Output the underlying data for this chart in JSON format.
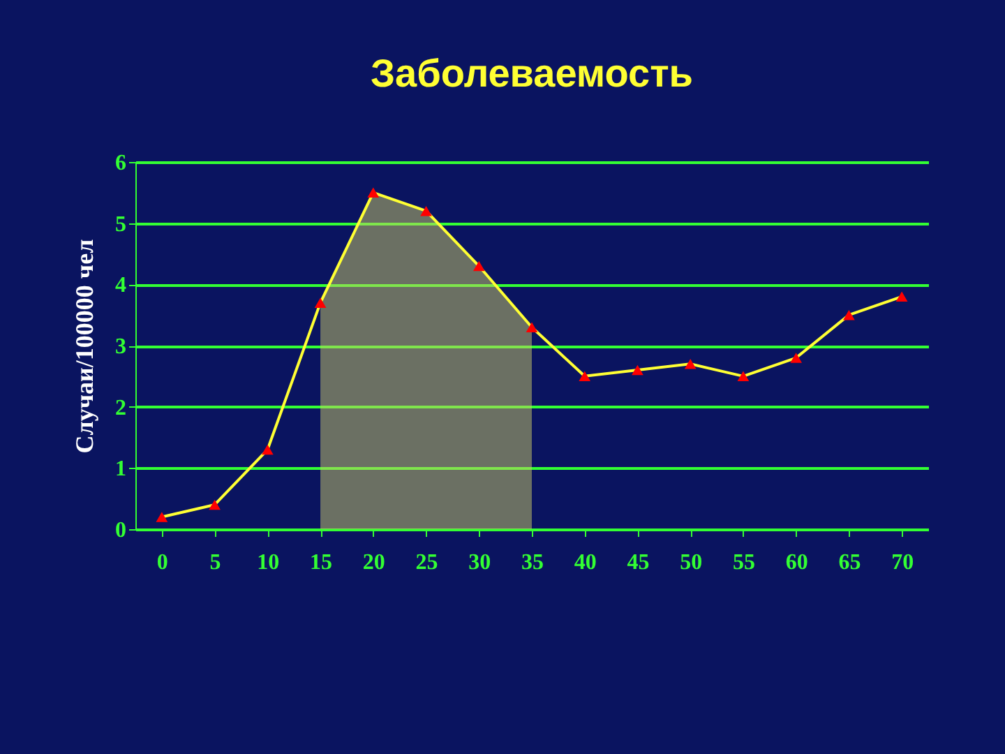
{
  "chart_data": {
    "type": "line",
    "title": "Заболеваемость",
    "ylabel": "Случаи/100000 чел",
    "categories": [
      "0",
      "5",
      "10",
      "15",
      "20",
      "25",
      "30",
      "35",
      "40",
      "45",
      "50",
      "55",
      "60",
      "65",
      "70"
    ],
    "series": [
      {
        "type": "area",
        "color": "#cccc66",
        "values": [
          null,
          null,
          null,
          3.7,
          5.5,
          5.2,
          4.3,
          3.3,
          null,
          null,
          null,
          null,
          null,
          null,
          null
        ]
      },
      {
        "color": "#ffff33",
        "values": [
          0.2,
          0.4,
          1.3,
          3.7,
          5.5,
          5.2,
          4.3,
          3.3,
          2.5,
          2.6,
          2.7,
          2.5,
          2.8,
          3.5,
          3.8
        ],
        "marker": "triangle"
      }
    ],
    "ylim": [
      0,
      6
    ],
    "yticks": [
      0,
      1,
      2,
      3,
      4,
      5,
      6
    ],
    "grid": "y"
  }
}
